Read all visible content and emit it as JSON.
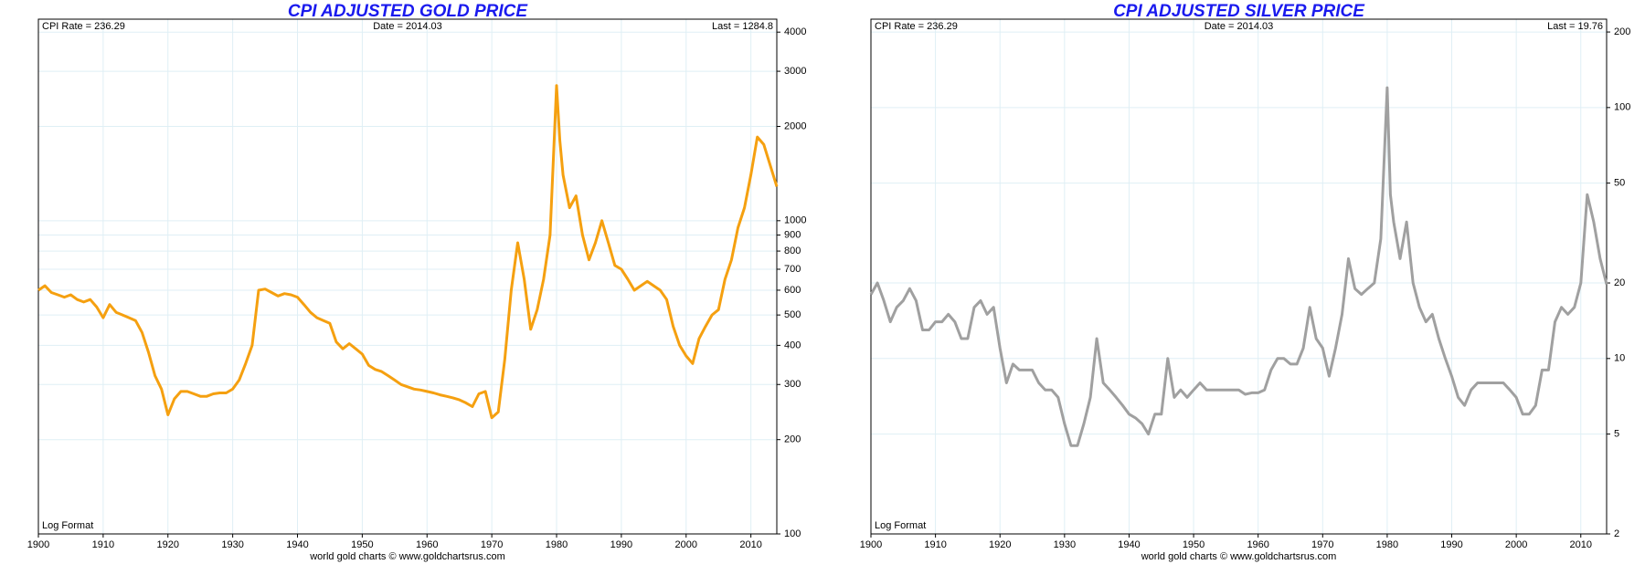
{
  "chart_data": [
    {
      "type": "line",
      "title": "CPI ADJUSTED GOLD PRICE",
      "log_scale": true,
      "annotations": {
        "left": "CPI Rate = 236.29",
        "center": "Date = 2014.03",
        "right": "Last = 1284.8",
        "bottom_left": "Log Format"
      },
      "footer": "world gold charts © www.goldchartsrus.com",
      "xlim": [
        1900,
        2014
      ],
      "xticks": [
        1900,
        1910,
        1920,
        1930,
        1940,
        1950,
        1960,
        1970,
        1980,
        1990,
        2000,
        2010
      ],
      "ylim": [
        100,
        4400
      ],
      "yticks": [
        100,
        200,
        300,
        400,
        500,
        600,
        700,
        800,
        900,
        1000,
        2000,
        3000,
        4000
      ],
      "x": [
        1900,
        1901,
        1902,
        1903,
        1904,
        1905,
        1906,
        1907,
        1908,
        1909,
        1910,
        1911,
        1912,
        1913,
        1914,
        1915,
        1916,
        1917,
        1918,
        1919,
        1920,
        1921,
        1922,
        1923,
        1924,
        1925,
        1926,
        1927,
        1928,
        1929,
        1930,
        1931,
        1932,
        1933,
        1934,
        1935,
        1936,
        1937,
        1938,
        1939,
        1940,
        1941,
        1942,
        1943,
        1944,
        1945,
        1946,
        1947,
        1948,
        1949,
        1950,
        1951,
        1952,
        1953,
        1954,
        1955,
        1956,
        1957,
        1958,
        1959,
        1960,
        1961,
        1962,
        1963,
        1964,
        1965,
        1966,
        1967,
        1968,
        1969,
        1970,
        1971,
        1972,
        1973,
        1974,
        1975,
        1976,
        1977,
        1978,
        1979,
        1980,
        1980.5,
        1981,
        1982,
        1983,
        1984,
        1985,
        1986,
        1987,
        1988,
        1989,
        1990,
        1991,
        1992,
        1993,
        1994,
        1995,
        1996,
        1997,
        1998,
        1999,
        2000,
        2001,
        2002,
        2003,
        2004,
        2005,
        2006,
        2007,
        2008,
        2009,
        2010,
        2011,
        2012,
        2013,
        2014
      ],
      "series": [
        {
          "name": "Gold",
          "color": "#f5a010",
          "values": [
            600,
            620,
            590,
            580,
            570,
            580,
            560,
            550,
            560,
            530,
            490,
            540,
            510,
            500,
            490,
            480,
            440,
            380,
            320,
            290,
            240,
            270,
            285,
            285,
            280,
            275,
            275,
            280,
            282,
            282,
            290,
            310,
            350,
            400,
            600,
            605,
            590,
            575,
            585,
            580,
            570,
            540,
            510,
            490,
            480,
            470,
            410,
            390,
            405,
            390,
            375,
            345,
            335,
            330,
            320,
            310,
            300,
            295,
            290,
            288,
            285,
            282,
            278,
            275,
            272,
            268,
            262,
            255,
            280,
            285,
            235,
            245,
            360,
            600,
            850,
            650,
            450,
            520,
            650,
            900,
            2700,
            1800,
            1400,
            1100,
            1200,
            900,
            750,
            850,
            1000,
            850,
            720,
            700,
            650,
            600,
            620,
            640,
            620,
            600,
            560,
            460,
            400,
            370,
            350,
            420,
            460,
            500,
            520,
            650,
            750,
            950,
            1100,
            1400,
            1850,
            1750,
            1500,
            1285
          ]
        }
      ]
    },
    {
      "type": "line",
      "title": "CPI ADJUSTED SILVER PRICE",
      "log_scale": true,
      "annotations": {
        "left": "CPI Rate = 236.29",
        "center": "Date = 2014.03",
        "right": "Last = 19.76",
        "bottom_left": "Log Format"
      },
      "footer": "world gold charts © www.goldchartsrus.com",
      "xlim": [
        1900,
        2014
      ],
      "xticks": [
        1900,
        1910,
        1920,
        1930,
        1940,
        1950,
        1960,
        1970,
        1980,
        1990,
        2000,
        2010
      ],
      "ylim": [
        2,
        225
      ],
      "yticks": [
        2,
        5,
        10,
        20,
        50,
        100,
        200
      ],
      "x": [
        1900,
        1901,
        1902,
        1903,
        1904,
        1905,
        1906,
        1907,
        1908,
        1909,
        1910,
        1911,
        1912,
        1913,
        1914,
        1915,
        1916,
        1917,
        1918,
        1919,
        1920,
        1921,
        1922,
        1923,
        1924,
        1925,
        1926,
        1927,
        1928,
        1929,
        1930,
        1931,
        1932,
        1933,
        1934,
        1935,
        1936,
        1937,
        1938,
        1939,
        1940,
        1941,
        1942,
        1943,
        1944,
        1945,
        1946,
        1947,
        1948,
        1949,
        1950,
        1951,
        1952,
        1953,
        1954,
        1955,
        1956,
        1957,
        1958,
        1959,
        1960,
        1961,
        1962,
        1963,
        1964,
        1965,
        1966,
        1967,
        1968,
        1969,
        1970,
        1971,
        1972,
        1973,
        1974,
        1975,
        1976,
        1977,
        1978,
        1979,
        1980,
        1980.5,
        1981,
        1982,
        1983,
        1984,
        1985,
        1986,
        1987,
        1988,
        1989,
        1990,
        1991,
        1992,
        1993,
        1994,
        1995,
        1996,
        1997,
        1998,
        1999,
        2000,
        2001,
        2002,
        2003,
        2004,
        2005,
        2006,
        2007,
        2008,
        2009,
        2010,
        2011,
        2012,
        2013,
        2014
      ],
      "series": [
        {
          "name": "Silver",
          "color": "#a0a0a0",
          "values": [
            18,
            20,
            17,
            14,
            16,
            17,
            19,
            17,
            13,
            13,
            14,
            14,
            15,
            14,
            12,
            12,
            16,
            17,
            15,
            16,
            11,
            8,
            9.5,
            9,
            9,
            9,
            8,
            7.5,
            7.5,
            7,
            5.5,
            4.5,
            4.5,
            5.5,
            7,
            12,
            8,
            7.5,
            7,
            6.5,
            6,
            5.8,
            5.5,
            5,
            6,
            6,
            10,
            7,
            7.5,
            7,
            7.5,
            8,
            7.5,
            7.5,
            7.5,
            7.5,
            7.5,
            7.5,
            7.2,
            7.3,
            7.3,
            7.5,
            9,
            10,
            10,
            9.5,
            9.5,
            11,
            16,
            12,
            11,
            8.5,
            11,
            15,
            25,
            19,
            18,
            19,
            20,
            30,
            120,
            45,
            35,
            25,
            35,
            20,
            16,
            14,
            15,
            12,
            10,
            8.5,
            7,
            6.5,
            7.5,
            8,
            8,
            8,
            8,
            8,
            7.5,
            7,
            6,
            6,
            6.5,
            9,
            9,
            14,
            16,
            15,
            16,
            20,
            45,
            35,
            25,
            19.76
          ]
        }
      ]
    }
  ]
}
